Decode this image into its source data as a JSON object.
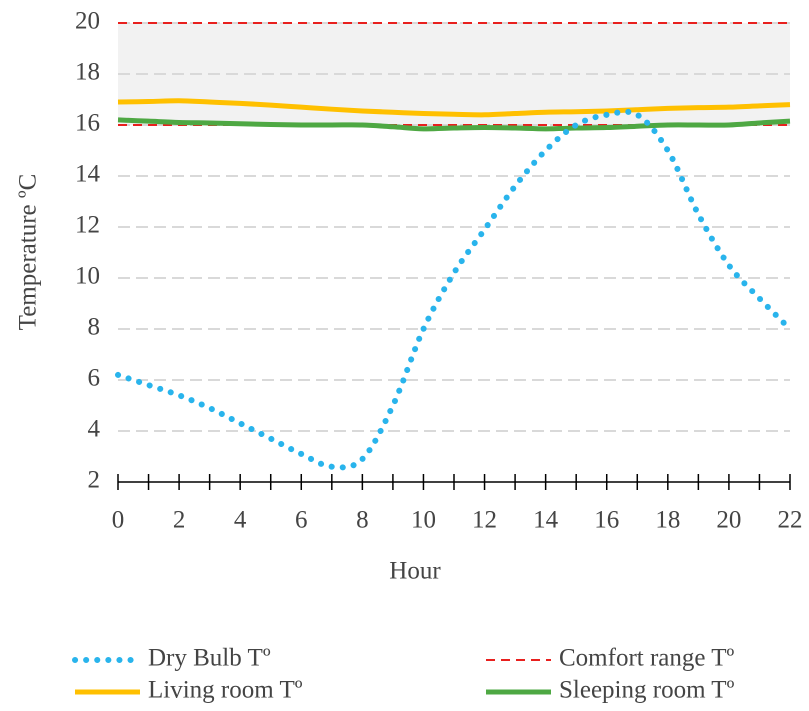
{
  "chart_data": {
    "type": "line",
    "x": [
      0,
      1,
      2,
      3,
      4,
      5,
      6,
      7,
      8,
      9,
      10,
      11,
      12,
      13,
      14,
      15,
      16,
      17,
      18,
      19,
      20,
      21,
      22
    ],
    "series": [
      {
        "name": "Dry Bulb Tº",
        "color": "#29b4ec",
        "style": "dotted",
        "values": [
          6.2,
          5.8,
          5.4,
          4.9,
          4.3,
          3.7,
          3.1,
          2.6,
          2.9,
          5.0,
          8.0,
          10.2,
          11.9,
          13.6,
          15.0,
          16.0,
          16.4,
          16.4,
          15.0,
          12.5,
          10.5,
          9.2,
          8.0
        ]
      },
      {
        "name": "Living room Tº",
        "color": "#ffc000",
        "style": "solid",
        "values": [
          16.9,
          16.92,
          16.95,
          16.9,
          16.85,
          16.78,
          16.7,
          16.62,
          16.55,
          16.5,
          16.45,
          16.42,
          16.4,
          16.45,
          16.5,
          16.52,
          16.55,
          16.6,
          16.65,
          16.68,
          16.7,
          16.75,
          16.8
        ]
      },
      {
        "name": "Sleeping room Tº",
        "color": "#4ea843",
        "style": "solid",
        "values": [
          16.2,
          16.15,
          16.1,
          16.08,
          16.05,
          16.02,
          16.0,
          16.0,
          16.0,
          15.93,
          15.85,
          15.88,
          15.9,
          15.88,
          15.85,
          15.88,
          15.9,
          15.95,
          16.0,
          16.0,
          16.0,
          16.08,
          16.15
        ]
      }
    ],
    "comfort_range": {
      "name": "Comfort range Tº",
      "color": "#e8201e",
      "fill": "#f2f2f2",
      "low": 16,
      "high": 20
    },
    "xlabel": "Hour",
    "ylabel": "Temperature ºC",
    "xlim": [
      0,
      22
    ],
    "ylim": [
      2,
      20
    ],
    "xticks": [
      0,
      2,
      4,
      6,
      8,
      10,
      12,
      14,
      16,
      18,
      20,
      22
    ],
    "yticks": [
      2,
      4,
      6,
      8,
      10,
      12,
      14,
      16,
      18,
      20
    ],
    "grid": true
  }
}
